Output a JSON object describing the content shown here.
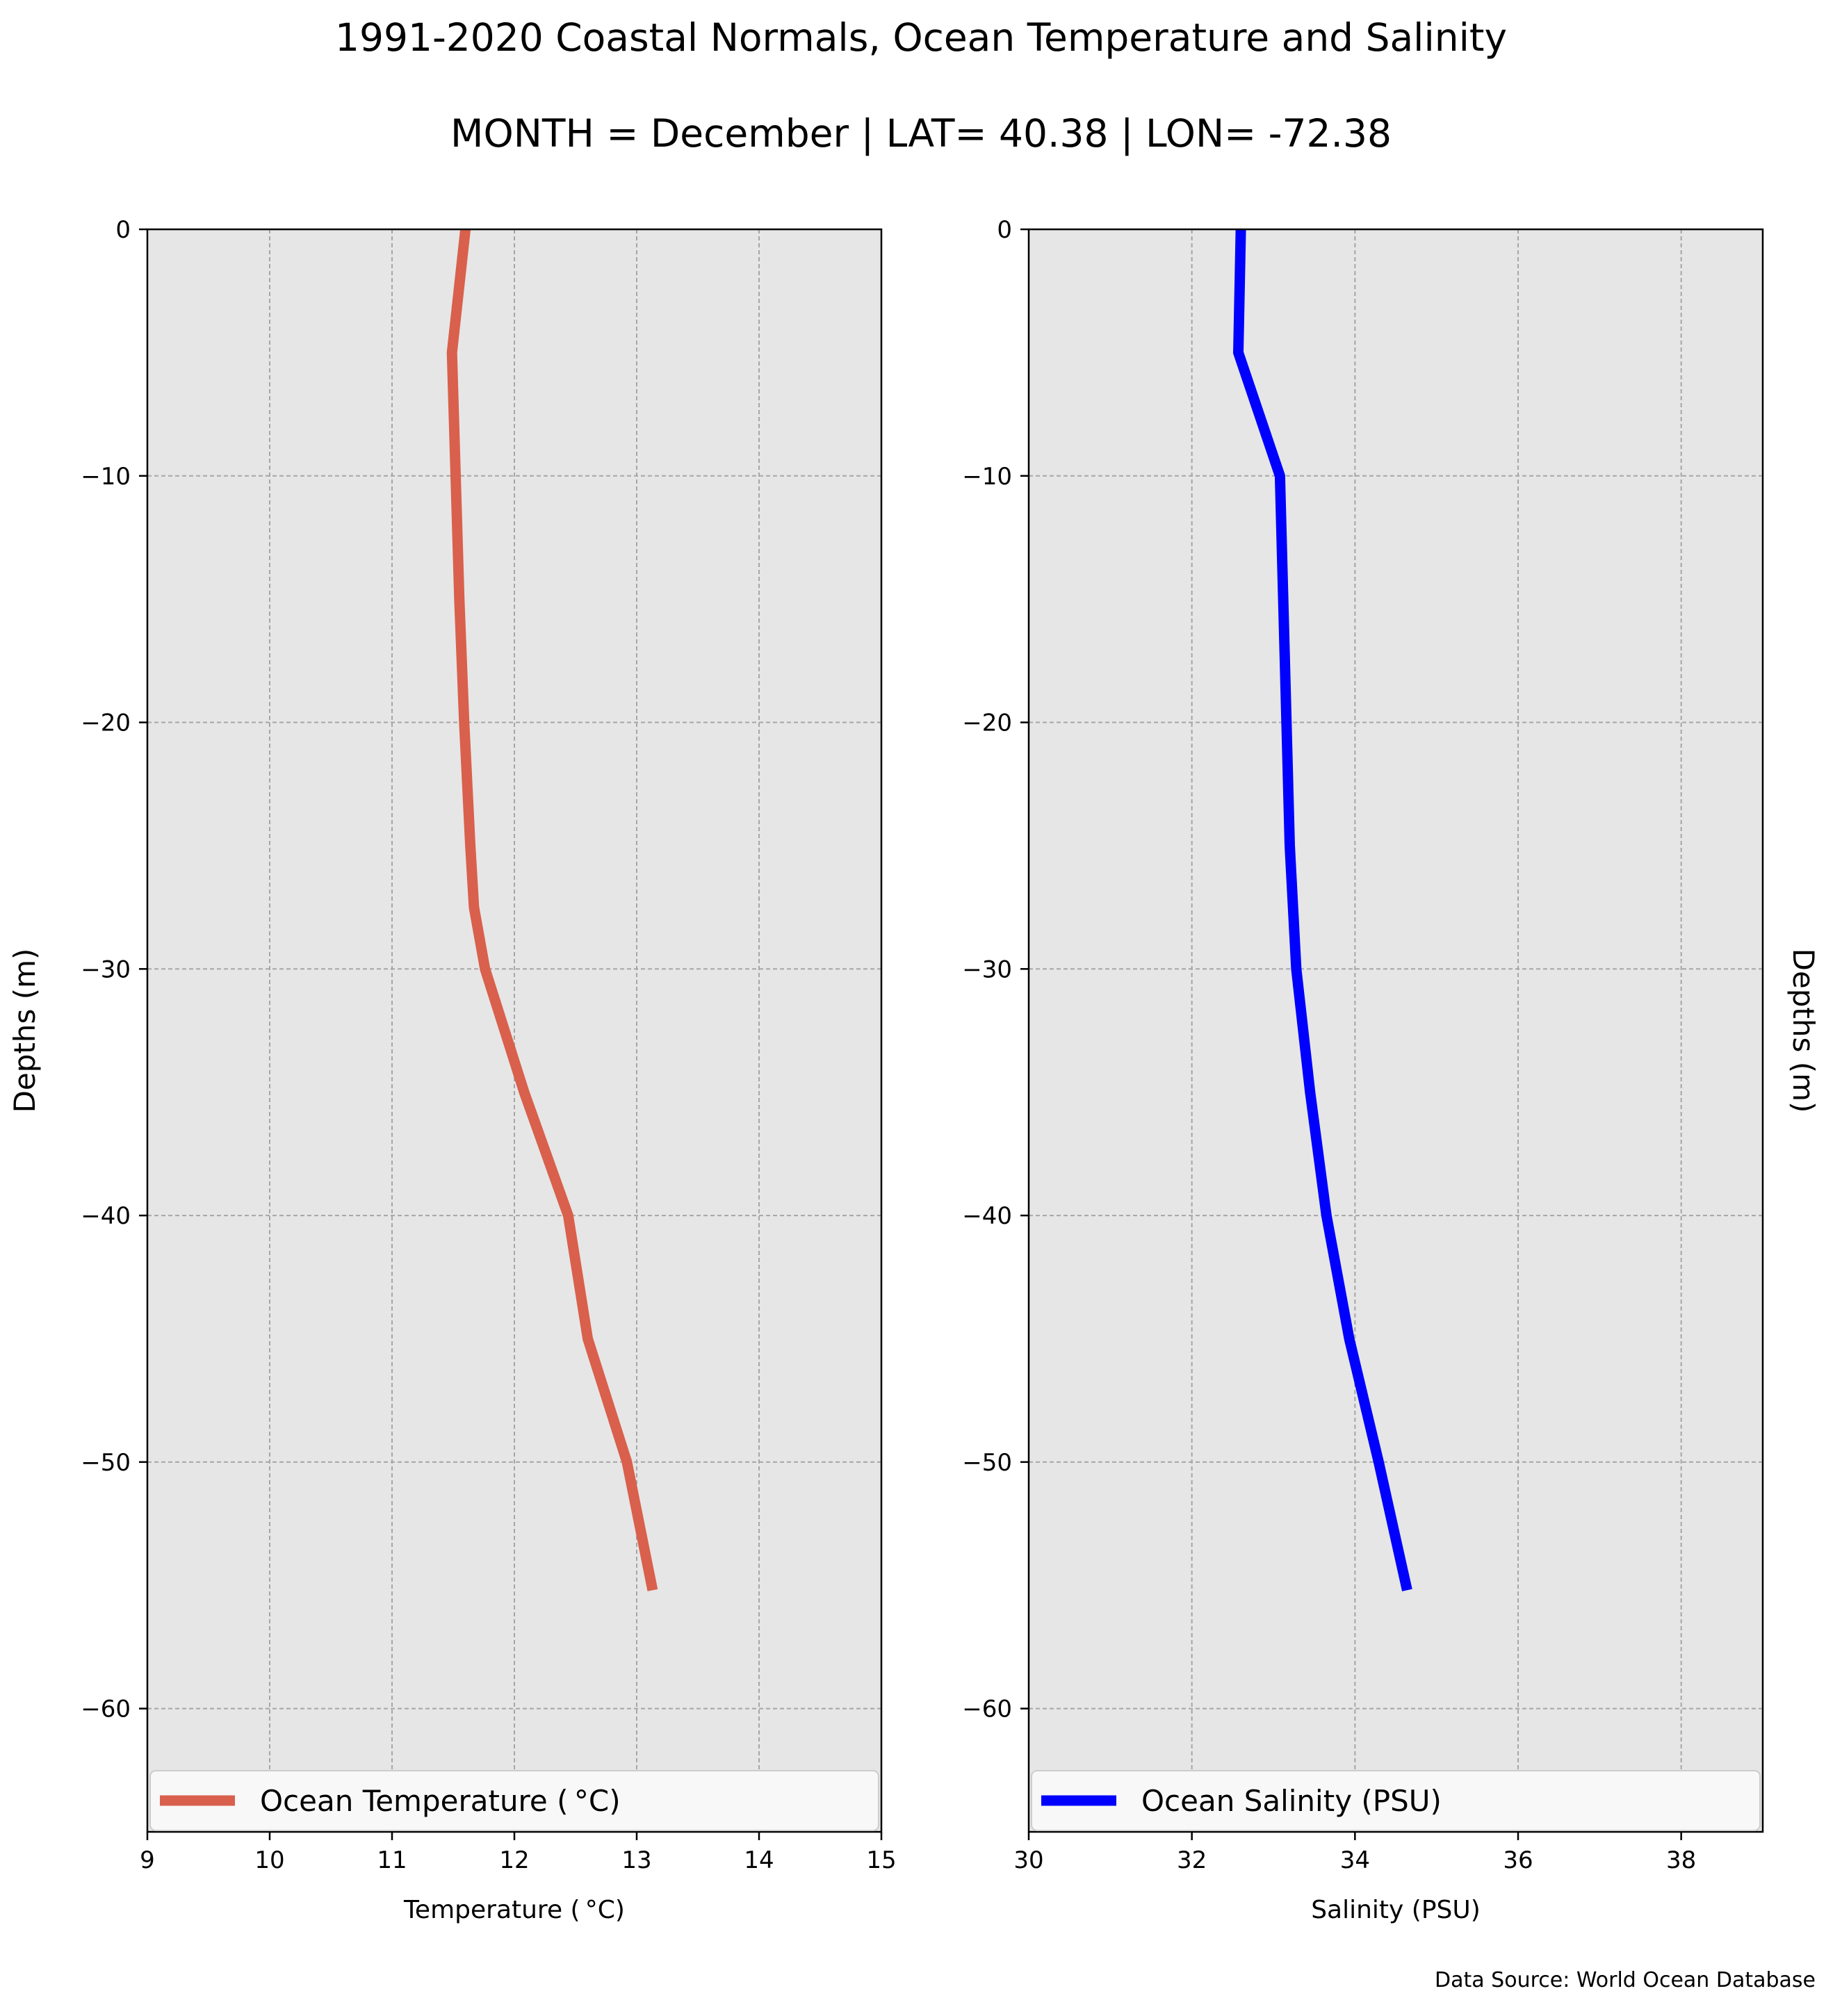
{
  "title": "1991-2020 Coastal Normals, Ocean Temperature and Salinity",
  "subtitle": "MONTH = December | LAT= 40.38 | LON= -72.38",
  "source_note": "Data Source: World Ocean Database",
  "chart_data": [
    {
      "type": "line",
      "xlabel": "Temperature ($^\\circ$C)",
      "xlabel_display": "Temperature ( °C)",
      "ylabel": "Depths (m)",
      "xlim": [
        9,
        15
      ],
      "ylim": [
        -65,
        0
      ],
      "xticks": [
        9,
        10,
        11,
        12,
        13,
        14,
        15
      ],
      "yticks": [
        0,
        -10,
        -20,
        -30,
        -40,
        -50,
        -60
      ],
      "ytick_labels": [
        "0",
        "−10",
        "−20",
        "−30",
        "−40",
        "−50",
        "−60"
      ],
      "grid": true,
      "legend_placement": "lower center",
      "ylabel_side": "left",
      "series": [
        {
          "name": "Ocean Temperature ( °C)",
          "color": "#d9604c",
          "x": [
            11.6,
            11.49,
            11.52,
            11.55,
            11.59,
            11.64,
            11.67,
            11.76,
            12.08,
            12.44,
            12.6,
            12.92,
            13.13
          ],
          "y": [
            0,
            -5,
            -10,
            -15,
            -20,
            -25,
            -27.5,
            -30,
            -35,
            -40,
            -45,
            -50,
            -55.2
          ]
        }
      ]
    },
    {
      "type": "line",
      "xlabel": "Salinity (PSU)",
      "xlabel_display": "Salinity (PSU)",
      "ylabel": "Depths (m)",
      "xlim": [
        30,
        39
      ],
      "ylim": [
        -65,
        0
      ],
      "xticks": [
        30,
        32,
        34,
        36,
        38
      ],
      "yticks": [
        0,
        -10,
        -20,
        -30,
        -40,
        -50,
        -60
      ],
      "ytick_labels": [
        "0",
        "−10",
        "−20",
        "−30",
        "−40",
        "−50",
        "−60"
      ],
      "grid": true,
      "legend_placement": "lower center",
      "ylabel_side": "right",
      "series": [
        {
          "name": "Ocean Salinity (PSU)",
          "color": "#0000ff",
          "x": [
            32.6,
            32.57,
            33.08,
            33.12,
            33.16,
            33.2,
            33.28,
            33.45,
            33.65,
            33.93,
            34.29,
            34.64
          ],
          "y": [
            0,
            -5,
            -10,
            -15,
            -20,
            -25,
            -30,
            -35,
            -40,
            -45,
            -50,
            -55.2
          ]
        }
      ]
    }
  ]
}
